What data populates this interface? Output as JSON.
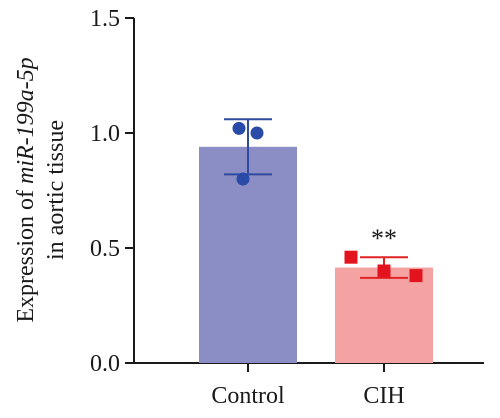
{
  "chart_data": {
    "type": "bar",
    "categories": [
      "Control",
      "CIH"
    ],
    "values": [
      0.94,
      0.415
    ],
    "errors": [
      0.12,
      0.045
    ],
    "points": [
      [
        1.02,
        1.0,
        0.8
      ],
      [
        0.46,
        0.4,
        0.38
      ]
    ],
    "significance": [
      "",
      "**"
    ],
    "ylabel": {
      "line1_prefix": "Expression of ",
      "line1_gene": "miR-199a-5p",
      "line2": "in aortic tissue"
    },
    "ylim": [
      0,
      1.5
    ],
    "yticks": [
      "0.0",
      "0.5",
      "1.0",
      "1.5"
    ],
    "grid": false,
    "colors": {
      "bars": [
        "#8b8ec4",
        "#f4a2a2"
      ],
      "errors": [
        "#2f4a9e",
        "#e02424"
      ],
      "points": [
        "#2a4aa8",
        "#e3141f"
      ],
      "markers": [
        "circle",
        "square"
      ]
    }
  }
}
